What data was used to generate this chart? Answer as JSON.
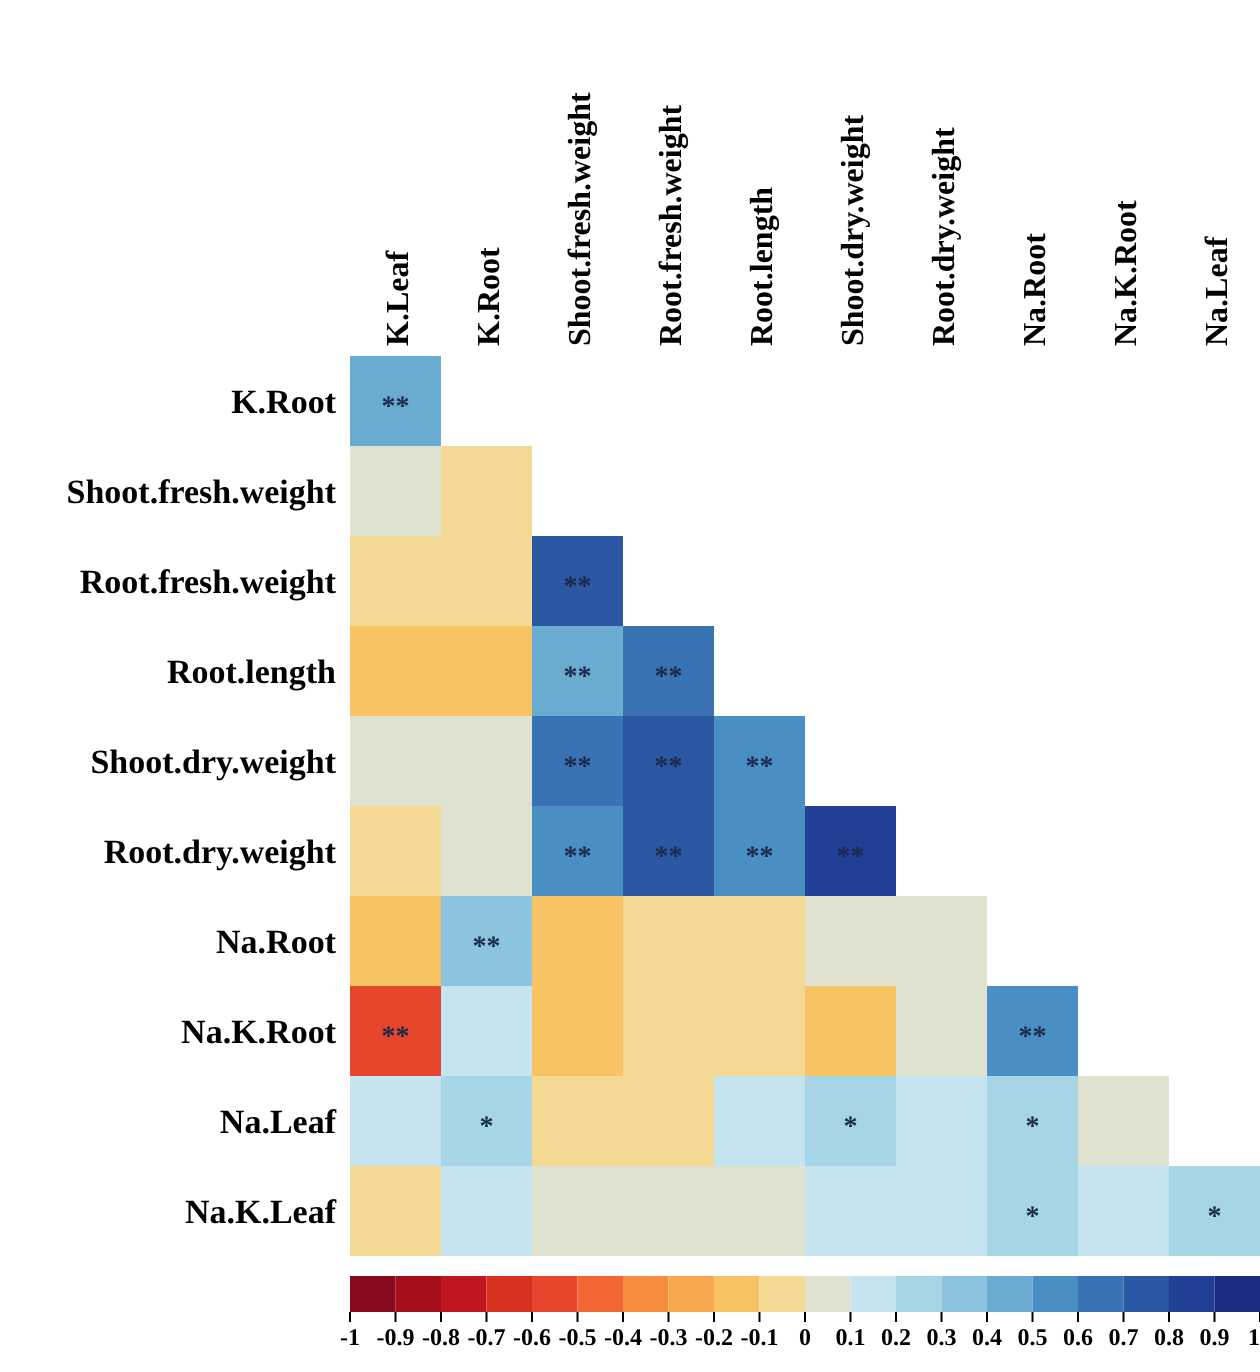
{
  "chart_data": {
    "type": "heatmap",
    "categories": [
      "K.Leaf",
      "K.Root",
      "Shoot.fresh.weight",
      "Root.fresh.weight",
      "Root.length",
      "Shoot.dry.weight",
      "Root.dry.weight",
      "Na.Root",
      "Na.K.Root",
      "Na.Leaf"
    ],
    "y_categories": [
      "K.Root",
      "Shoot.fresh.weight",
      "Root.fresh.weight",
      "Root.length",
      "Shoot.dry.weight",
      "Root.dry.weight",
      "Na.Root",
      "Na.K.Root",
      "Na.Leaf",
      "Na.K.Leaf"
    ],
    "cells": [
      [
        0.45,
        null,
        null,
        null,
        null,
        null,
        null,
        null,
        null,
        null
      ],
      [
        0.05,
        -0.05,
        null,
        null,
        null,
        null,
        null,
        null,
        null,
        null
      ],
      [
        -0.05,
        -0.05,
        0.75,
        null,
        null,
        null,
        null,
        null,
        null,
        null
      ],
      [
        -0.15,
        -0.15,
        0.45,
        0.65,
        null,
        null,
        null,
        null,
        null,
        null
      ],
      [
        0.05,
        0.05,
        0.65,
        0.75,
        0.55,
        null,
        null,
        null,
        null,
        null
      ],
      [
        -0.05,
        0.05,
        0.55,
        0.75,
        0.55,
        0.85,
        null,
        null,
        null,
        null
      ],
      [
        -0.15,
        0.35,
        -0.15,
        -0.05,
        -0.05,
        0.05,
        0.05,
        null,
        null,
        null
      ],
      [
        -0.55,
        0.15,
        -0.15,
        -0.05,
        -0.05,
        -0.15,
        0.05,
        0.55,
        null,
        null
      ],
      [
        0.15,
        0.25,
        -0.05,
        -0.05,
        0.15,
        0.25,
        0.15,
        0.25,
        0.05,
        null
      ],
      [
        -0.05,
        0.15,
        0.05,
        0.05,
        0.05,
        0.15,
        0.15,
        0.25,
        0.15,
        0.25
      ]
    ],
    "cell_labels": [
      [
        "**",
        null,
        null,
        null,
        null,
        null,
        null,
        null,
        null,
        null
      ],
      [
        null,
        null,
        null,
        null,
        null,
        null,
        null,
        null,
        null,
        null
      ],
      [
        null,
        null,
        "**",
        null,
        null,
        null,
        null,
        null,
        null,
        null
      ],
      [
        null,
        null,
        "**",
        "**",
        null,
        null,
        null,
        null,
        null,
        null
      ],
      [
        null,
        null,
        "**",
        "**",
        "**",
        null,
        null,
        null,
        null,
        null
      ],
      [
        null,
        null,
        "**",
        "**",
        "**",
        "**",
        null,
        null,
        null,
        null
      ],
      [
        null,
        "**",
        null,
        null,
        null,
        null,
        null,
        null,
        null,
        null
      ],
      [
        "**",
        null,
        null,
        null,
        null,
        null,
        null,
        "**",
        null,
        null
      ],
      [
        null,
        "*",
        null,
        null,
        null,
        "*",
        null,
        "*",
        null,
        null
      ],
      [
        null,
        null,
        null,
        null,
        null,
        null,
        null,
        "*",
        null,
        "*"
      ]
    ],
    "colors": [
      "#870a1e",
      "#a50f1a",
      "#c0161f",
      "#d7301f",
      "#e6462b",
      "#f16633",
      "#f78c3f",
      "#f9a94d",
      "#f8c362",
      "#f3d993",
      "#dfe2cf",
      "#c5e4ef",
      "#a6d5e8",
      "#8cc4df",
      "#6aabd2",
      "#4a8fc3",
      "#3a73b3",
      "#2c57a3",
      "#213f94",
      "#1a2b80"
    ],
    "clim": [
      -1,
      1
    ],
    "cticks": [
      -1,
      -0.9,
      -0.8,
      -0.7,
      -0.6,
      -0.5,
      -0.4,
      -0.3,
      -0.2,
      -0.1,
      0,
      0.1,
      0.2,
      0.3,
      0.4,
      0.5,
      0.6,
      0.7,
      0.8,
      0.9,
      1
    ]
  }
}
